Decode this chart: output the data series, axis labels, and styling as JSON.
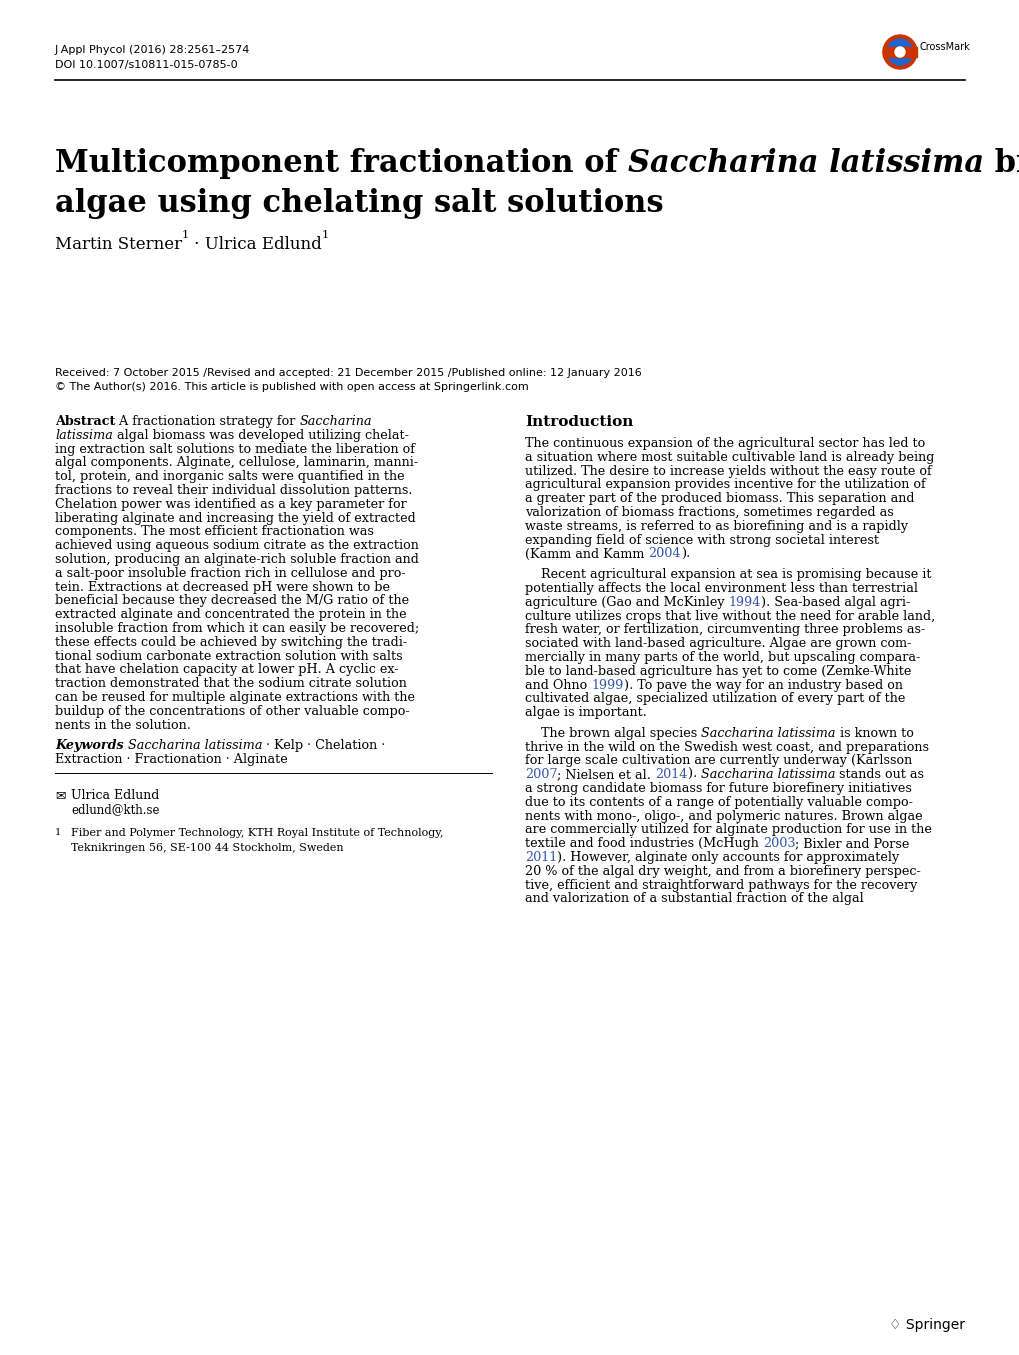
{
  "journal_line1": "J Appl Phycol (2016) 28:2561–2574",
  "journal_line2": "DOI 10.1007/s10811-015-0785-0",
  "received": "Received: 7 October 2015 /Revised and accepted: 21 December 2015 /Published online: 12 January 2016",
  "copyright": "© The Author(s) 2016. This article is published with open access at Springerlink.com",
  "ref_color": "#3355aa",
  "bg_color": "#ffffff"
}
